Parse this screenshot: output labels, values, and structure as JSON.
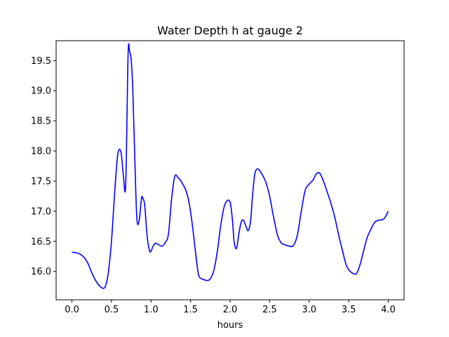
{
  "chart_data": {
    "type": "line",
    "title": "Water Depth h at gauge 2",
    "xlabel": "hours",
    "ylabel": "",
    "xlim": [
      -0.2,
      4.2
    ],
    "ylim": [
      15.53,
      19.83
    ],
    "xticks": [
      0.0,
      0.5,
      1.0,
      1.5,
      2.0,
      2.5,
      3.0,
      3.5,
      4.0
    ],
    "xtick_labels": [
      "0.0",
      "0.5",
      "1.0",
      "1.5",
      "2.0",
      "2.5",
      "3.0",
      "3.5",
      "4.0"
    ],
    "yticks": [
      16.0,
      16.5,
      17.0,
      17.5,
      18.0,
      18.5,
      19.0,
      19.5
    ],
    "ytick_labels": [
      "16.0",
      "16.5",
      "17.0",
      "17.5",
      "18.0",
      "18.5",
      "19.0",
      "19.5"
    ],
    "grid": false,
    "legend": "none",
    "series": [
      {
        "color": "#0000ff",
        "x": [
          0.0,
          0.05,
          0.1,
          0.15,
          0.2,
          0.25,
          0.3,
          0.35,
          0.4,
          0.43,
          0.46,
          0.5,
          0.54,
          0.58,
          0.62,
          0.65,
          0.68,
          0.71,
          0.73,
          0.75,
          0.77,
          0.79,
          0.82,
          0.85,
          0.88,
          0.9,
          0.92,
          0.95,
          0.98,
          1.0,
          1.03,
          1.06,
          1.1,
          1.14,
          1.18,
          1.22,
          1.26,
          1.3,
          1.34,
          1.37,
          1.4,
          1.44,
          1.48,
          1.52,
          1.56,
          1.6,
          1.64,
          1.68,
          1.72,
          1.76,
          1.8,
          1.84,
          1.88,
          1.92,
          1.96,
          2.0,
          2.03,
          2.05,
          2.08,
          2.11,
          2.14,
          2.17,
          2.2,
          2.23,
          2.26,
          2.28,
          2.31,
          2.34,
          2.37,
          2.4,
          2.43,
          2.46,
          2.5,
          2.55,
          2.6,
          2.65,
          2.7,
          2.75,
          2.8,
          2.85,
          2.9,
          2.95,
          3.0,
          3.05,
          3.08,
          3.11,
          3.14,
          3.18,
          3.22,
          3.27,
          3.32,
          3.37,
          3.42,
          3.47,
          3.52,
          3.57,
          3.6,
          3.64,
          3.68,
          3.73,
          3.78,
          3.83,
          3.88,
          3.93,
          3.96,
          4.0
        ],
        "y": [
          16.32,
          16.31,
          16.29,
          16.24,
          16.14,
          15.98,
          15.85,
          15.76,
          15.72,
          15.78,
          15.98,
          16.5,
          17.3,
          17.95,
          17.98,
          17.6,
          17.45,
          19.6,
          19.65,
          19.5,
          19.0,
          18.1,
          16.9,
          16.85,
          17.22,
          17.2,
          17.1,
          16.6,
          16.35,
          16.34,
          16.43,
          16.47,
          16.44,
          16.42,
          16.48,
          16.62,
          17.2,
          17.58,
          17.56,
          17.52,
          17.45,
          17.35,
          17.15,
          16.8,
          16.35,
          15.95,
          15.88,
          15.86,
          15.85,
          15.9,
          16.05,
          16.35,
          16.75,
          17.05,
          17.17,
          17.15,
          16.85,
          16.5,
          16.38,
          16.62,
          16.82,
          16.85,
          16.75,
          16.68,
          16.85,
          17.2,
          17.6,
          17.7,
          17.68,
          17.62,
          17.55,
          17.45,
          17.25,
          16.9,
          16.6,
          16.47,
          16.44,
          16.42,
          16.43,
          16.6,
          17.0,
          17.35,
          17.45,
          17.52,
          17.6,
          17.64,
          17.62,
          17.5,
          17.35,
          17.15,
          16.92,
          16.62,
          16.35,
          16.1,
          16.0,
          15.96,
          15.97,
          16.1,
          16.3,
          16.55,
          16.7,
          16.82,
          16.85,
          16.86,
          16.9,
          17.0
        ]
      }
    ]
  }
}
